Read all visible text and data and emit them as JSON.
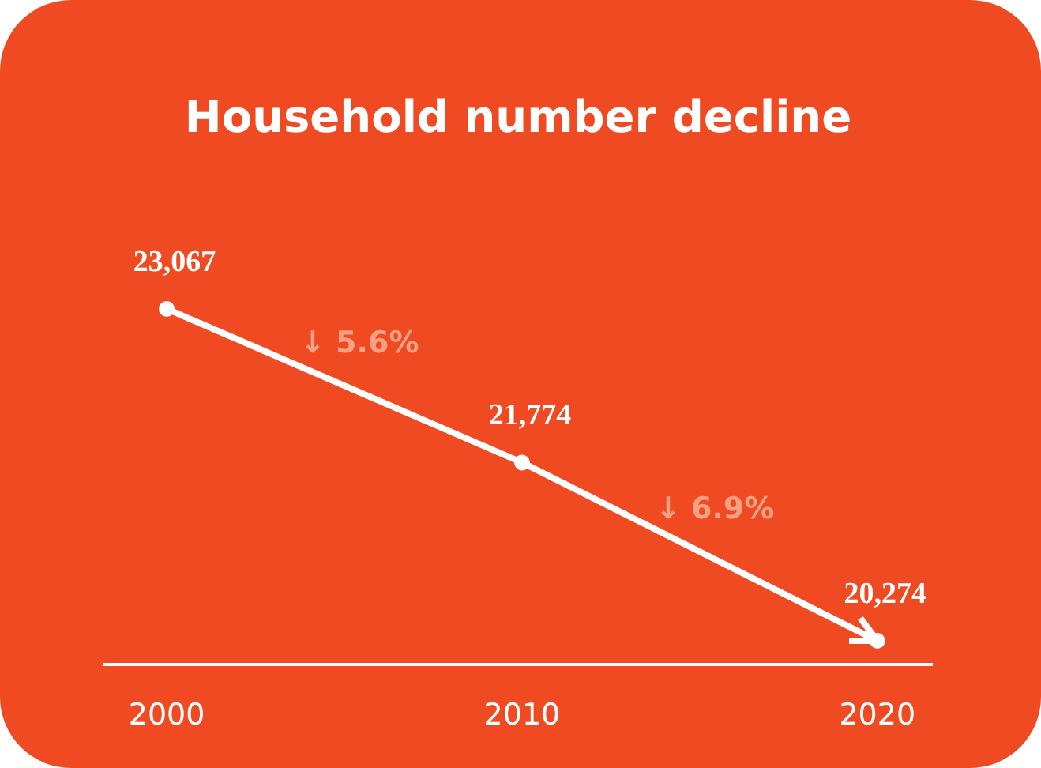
{
  "chart_data": {
    "type": "line",
    "title": "Household number decline",
    "categories": [
      "2000",
      "2010",
      "2020"
    ],
    "series": [
      {
        "color": "#ffffff",
        "values": [
          23067,
          21774,
          20274
        ],
        "value_labels": [
          "23,067",
          "21,774",
          "20,274"
        ]
      }
    ],
    "marker": "circle",
    "line_style": "solid",
    "grid": false,
    "annotations": [
      "↓ 5.6%",
      "↓ 6.9%"
    ]
  }
}
